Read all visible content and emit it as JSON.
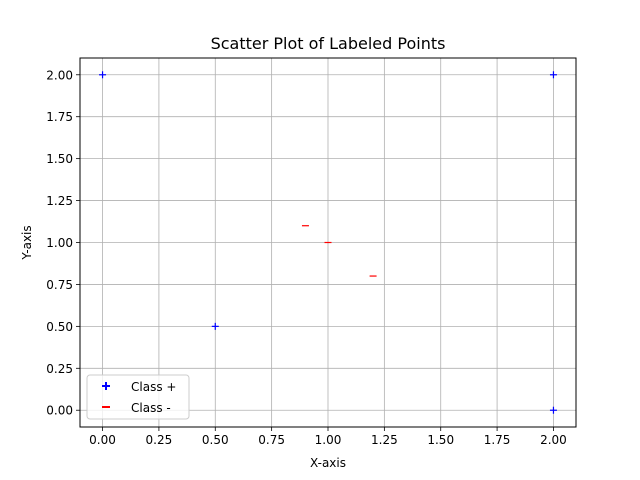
{
  "chart_data": {
    "type": "scatter",
    "title": "Scatter Plot of Labeled Points",
    "xlabel": "X-axis",
    "ylabel": "Y-axis",
    "xlim": [
      -0.1,
      2.1
    ],
    "ylim": [
      -0.1,
      2.1
    ],
    "xticks": [
      0.0,
      0.25,
      0.5,
      0.75,
      1.0,
      1.25,
      1.5,
      1.75,
      2.0
    ],
    "xtick_labels": [
      "0.00",
      "0.25",
      "0.50",
      "0.75",
      "1.00",
      "1.25",
      "1.50",
      "1.75",
      "2.00"
    ],
    "yticks": [
      0.0,
      0.25,
      0.5,
      0.75,
      1.0,
      1.25,
      1.5,
      1.75,
      2.0
    ],
    "ytick_labels": [
      "0.00",
      "0.25",
      "0.50",
      "0.75",
      "1.00",
      "1.25",
      "1.50",
      "1.75",
      "2.00"
    ],
    "grid": true,
    "legend_position": "lower-left",
    "series": [
      {
        "name": "Class +",
        "marker": "plus",
        "color": "#0000ff",
        "points": [
          [
            0.0,
            2.0
          ],
          [
            0.5,
            0.5
          ],
          [
            2.0,
            2.0
          ],
          [
            2.0,
            0.0
          ]
        ]
      },
      {
        "name": "Class -",
        "marker": "minus",
        "color": "#ff0000",
        "points": [
          [
            0.9,
            1.1
          ],
          [
            1.0,
            1.0
          ],
          [
            1.2,
            0.8
          ]
        ]
      }
    ]
  }
}
